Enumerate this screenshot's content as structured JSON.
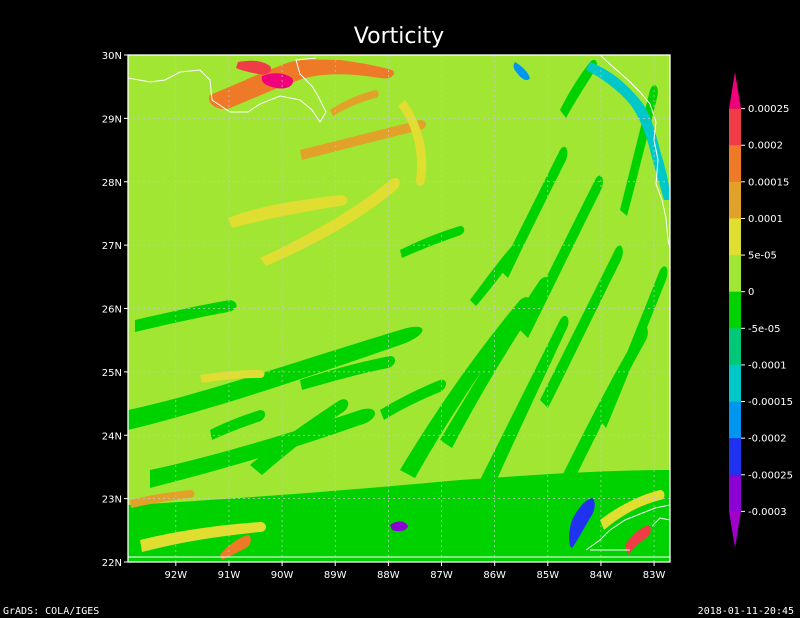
{
  "title": "Vorticity",
  "footer": {
    "left": "GrADS: COLA/IGES",
    "right": "2018-01-11-20:45"
  },
  "map": {
    "lon_labels": [
      "92W",
      "91W",
      "90W",
      "89W",
      "88W",
      "87W",
      "86W",
      "85W",
      "84W",
      "83W"
    ],
    "lat_labels": [
      "30N",
      "29N",
      "28N",
      "27N",
      "26N",
      "25N",
      "24N",
      "23N",
      "22N"
    ],
    "lon_range": [
      -92.9,
      -82.7
    ],
    "lat_range": [
      22.0,
      30.0
    ],
    "grid": true,
    "coastline_color": "#ffffff",
    "grid_color": "#c8c8c8"
  },
  "colorbar": {
    "labels": [
      "0.00025",
      "0.0002",
      "0.00015",
      "0.0001",
      "5e-05",
      "0",
      "-5e-05",
      "-0.0001",
      "-0.00015",
      "-0.0002",
      "-0.00025",
      "-0.0003"
    ],
    "colors": [
      "#f0007a",
      "#f03c46",
      "#ee7a28",
      "#e2a22a",
      "#e0de30",
      "#a0e632",
      "#00d200",
      "#00c878",
      "#00c8c8",
      "#0096f0",
      "#1e32f0",
      "#8c00d2",
      "#a000c8"
    ]
  },
  "field": {
    "background_color": "#a0e632",
    "negative_color": "#00d200",
    "positive_color": "#e0de30",
    "strong_positive_color": "#e2a22a",
    "very_strong_positive_colors": [
      "#ee7a28",
      "#f03c46",
      "#f0007a"
    ],
    "strong_negative_colors": [
      "#00c8c8",
      "#0096f0",
      "#1e32f0",
      "#8c00d2"
    ]
  }
}
